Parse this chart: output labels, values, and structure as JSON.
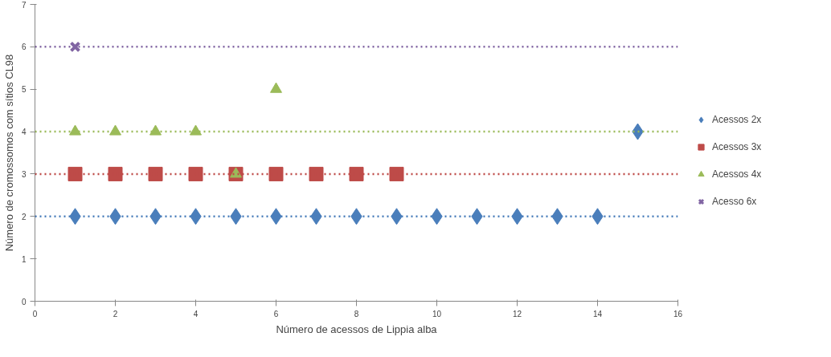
{
  "chart_data": {
    "type": "scatter",
    "xlabel": "Número de acessos de Lippia alba",
    "ylabel": "Número de cromossomos com sítios CL98",
    "xlim": [
      0,
      16
    ],
    "xticks": [
      0,
      2,
      4,
      6,
      8,
      10,
      12,
      14,
      16
    ],
    "ylim": [
      0,
      7
    ],
    "yticks": [
      0,
      1,
      2,
      3,
      4,
      5,
      6,
      7
    ],
    "grid": false,
    "legend": "right",
    "series": [
      {
        "name": "Acessos 2x",
        "color": "#4a7ebb",
        "marker": "diamond",
        "x": [
          1,
          2,
          3,
          4,
          5,
          6,
          7,
          8,
          9,
          10,
          11,
          12,
          13,
          14,
          15
        ],
        "values": [
          2,
          2,
          2,
          2,
          2,
          2,
          2,
          2,
          2,
          2,
          2,
          2,
          2,
          2,
          4
        ]
      },
      {
        "name": "Acessos 3x",
        "color": "#be4b48",
        "marker": "square",
        "x": [
          1,
          2,
          3,
          4,
          5,
          6,
          7,
          8,
          9
        ],
        "values": [
          3,
          3,
          3,
          3,
          3,
          3,
          3,
          3,
          3
        ]
      },
      {
        "name": "Acessos 4x",
        "color": "#9bbb59",
        "marker": "triangle",
        "x": [
          1,
          2,
          3,
          4,
          5,
          6
        ],
        "values": [
          4,
          4,
          4,
          4,
          3,
          5
        ]
      },
      {
        "name": "Acesso 6x",
        "color": "#8064a2",
        "marker": "cross",
        "x": [
          1
        ],
        "values": [
          6
        ]
      }
    ],
    "ref_lines": [
      {
        "axis": "y",
        "value": 2,
        "color": "#4a7ebb",
        "line_style": "dotted"
      },
      {
        "axis": "y",
        "value": 3,
        "color": "#be4b48",
        "line_style": "dotted"
      },
      {
        "axis": "y",
        "value": 4,
        "color": "#9bbb59",
        "line_style": "dotted"
      },
      {
        "axis": "y",
        "value": 6,
        "color": "#8064a2",
        "line_style": "dotted"
      }
    ]
  }
}
